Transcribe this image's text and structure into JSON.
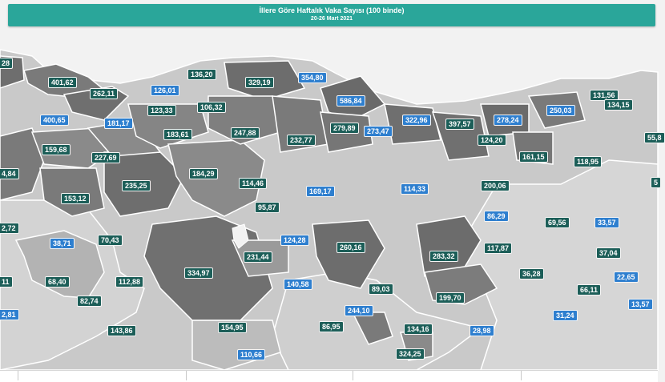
{
  "header": {
    "title": "İllere Göre Haftalık Vaka Sayısı (100 binde)",
    "date_range": "20-26 Mart 2021"
  },
  "colors": {
    "header_bg": "#2aa69a",
    "label_dark": "#1c5e58",
    "label_blue": "#2e7fcf",
    "sea": "#f2f2f2"
  },
  "labels": [
    {
      "text": "28",
      "style": "dark"
    },
    {
      "text": "401,62",
      "style": "dark"
    },
    {
      "text": "136,20",
      "style": "dark"
    },
    {
      "text": "329,19",
      "style": "dark"
    },
    {
      "text": "354,80",
      "style": "blue"
    },
    {
      "text": "262,11",
      "style": "dark"
    },
    {
      "text": "126,01",
      "style": "blue"
    },
    {
      "text": "131,56",
      "style": "dark"
    },
    {
      "text": "134,15",
      "style": "dark"
    },
    {
      "text": "586,84",
      "style": "blue"
    },
    {
      "text": "123,33",
      "style": "dark"
    },
    {
      "text": "106,32",
      "style": "dark"
    },
    {
      "text": "250,03",
      "style": "blue"
    },
    {
      "text": "400,65",
      "style": "blue"
    },
    {
      "text": "181,17",
      "style": "blue"
    },
    {
      "text": "322,96",
      "style": "blue"
    },
    {
      "text": "397,57",
      "style": "dark"
    },
    {
      "text": "278,24",
      "style": "blue"
    },
    {
      "text": "183,61",
      "style": "dark"
    },
    {
      "text": "247,88",
      "style": "dark"
    },
    {
      "text": "279,89",
      "style": "dark"
    },
    {
      "text": "232,77",
      "style": "dark"
    },
    {
      "text": "124,20",
      "style": "dark"
    },
    {
      "text": "159,68",
      "style": "dark"
    },
    {
      "text": "273,47",
      "style": "blue"
    },
    {
      "text": "55,8",
      "style": "dark"
    },
    {
      "text": "161,15",
      "style": "dark"
    },
    {
      "text": "118,95",
      "style": "dark"
    },
    {
      "text": "227,69",
      "style": "dark"
    },
    {
      "text": "184,29",
      "style": "dark"
    },
    {
      "text": "4,84",
      "style": "dark"
    },
    {
      "text": "235,25",
      "style": "dark"
    },
    {
      "text": "114,46",
      "style": "dark"
    },
    {
      "text": "200,06",
      "style": "dark"
    },
    {
      "text": "169,17",
      "style": "blue"
    },
    {
      "text": "114,33",
      "style": "blue"
    },
    {
      "text": "5",
      "style": "dark"
    },
    {
      "text": "153,12",
      "style": "dark"
    },
    {
      "text": "95,87",
      "style": "dark"
    },
    {
      "text": "86,29",
      "style": "blue"
    },
    {
      "text": "69,56",
      "style": "dark"
    },
    {
      "text": "33,57",
      "style": "blue"
    },
    {
      "text": "2,72",
      "style": "dark"
    },
    {
      "text": "260,16",
      "style": "dark"
    },
    {
      "text": "38,71",
      "style": "blue"
    },
    {
      "text": "70,43",
      "style": "dark"
    },
    {
      "text": "124,28",
      "style": "blue"
    },
    {
      "text": "117,87",
      "style": "dark"
    },
    {
      "text": "283,32",
      "style": "dark"
    },
    {
      "text": "37,04",
      "style": "dark"
    },
    {
      "text": "231,44",
      "style": "dark"
    },
    {
      "text": "334,97",
      "style": "dark"
    },
    {
      "text": "36,28",
      "style": "dark"
    },
    {
      "text": "22,65",
      "style": "blue"
    },
    {
      "text": "11",
      "style": "dark"
    },
    {
      "text": "68,40",
      "style": "dark"
    },
    {
      "text": "112,88",
      "style": "dark"
    },
    {
      "text": "140,58",
      "style": "blue"
    },
    {
      "text": "89,03",
      "style": "dark"
    },
    {
      "text": "66,11",
      "style": "dark"
    },
    {
      "text": "199,70",
      "style": "dark"
    },
    {
      "text": "82,74",
      "style": "dark"
    },
    {
      "text": "244,10",
      "style": "blue"
    },
    {
      "text": "13,57",
      "style": "blue"
    },
    {
      "text": "2,81",
      "style": "blue"
    },
    {
      "text": "31,24",
      "style": "blue"
    },
    {
      "text": "143,86",
      "style": "dark"
    },
    {
      "text": "154,95",
      "style": "dark"
    },
    {
      "text": "86,95",
      "style": "dark"
    },
    {
      "text": "134,16",
      "style": "dark"
    },
    {
      "text": "28,98",
      "style": "blue"
    },
    {
      "text": "110,66",
      "style": "blue"
    },
    {
      "text": "324,25",
      "style": "dark"
    }
  ]
}
